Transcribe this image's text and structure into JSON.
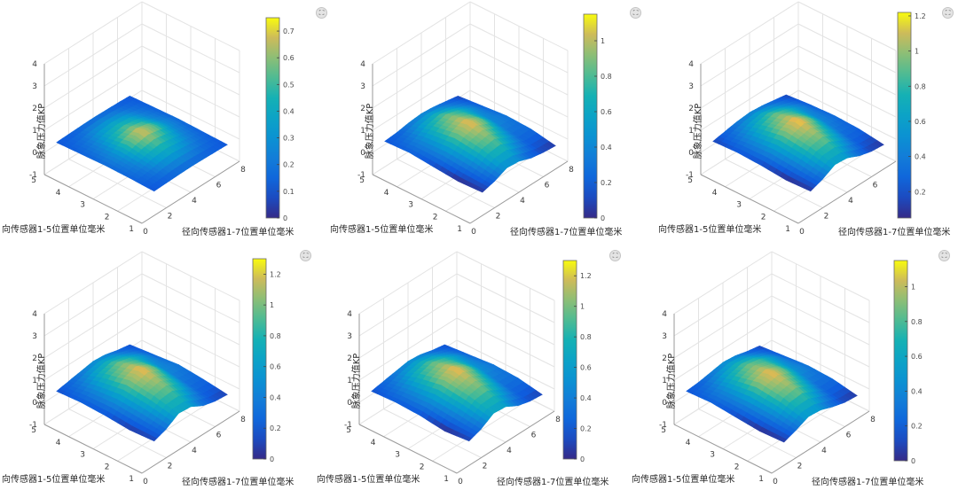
{
  "chart_data": [
    {
      "type": "surface",
      "zlabel": "脉象压力值KP",
      "xlabel": "径向传感器1-7位置单位毫米",
      "ylabel": "向传感器1-5位置单位毫米",
      "x_ticks": [
        "0",
        "2",
        "4",
        "6",
        "8"
      ],
      "y_ticks": [
        "1",
        "2",
        "3",
        "4",
        "5"
      ],
      "z_ticks": [
        "-1",
        "0",
        "1",
        "2",
        "3",
        "4"
      ],
      "zlim": [
        -1,
        4
      ],
      "colorbar": {
        "ticks": [
          "0",
          "0.1",
          "0.2",
          "0.3",
          "0.4",
          "0.5",
          "0.6",
          "0.7"
        ],
        "range": [
          0,
          0.75
        ]
      },
      "peak_value": 0.72,
      "surface_z": [
        [
          0.1,
          0.12,
          0.14,
          0.15,
          0.14,
          0.12,
          0.1
        ],
        [
          0.14,
          0.22,
          0.36,
          0.42,
          0.34,
          0.22,
          0.13
        ],
        [
          0.16,
          0.3,
          0.56,
          0.7,
          0.56,
          0.3,
          0.16
        ],
        [
          0.13,
          0.22,
          0.36,
          0.42,
          0.36,
          0.22,
          0.13
        ],
        [
          0.1,
          0.12,
          0.14,
          0.15,
          0.14,
          0.12,
          0.1
        ]
      ]
    },
    {
      "type": "surface",
      "zlabel": "脉象压力值KP",
      "xlabel": "径向传感器1-7位置单位毫米",
      "ylabel": "向传感器1-5位置单位毫米",
      "x_ticks": [
        "0",
        "2",
        "4",
        "6",
        "8"
      ],
      "y_ticks": [
        "1",
        "2",
        "3",
        "4",
        "5"
      ],
      "z_ticks": [
        "-1",
        "0",
        "1",
        "2",
        "3",
        "4"
      ],
      "zlim": [
        -1,
        4
      ],
      "colorbar": {
        "ticks": [
          "0",
          "0.2",
          "0.4",
          "0.6",
          "0.8",
          "1"
        ],
        "range": [
          0,
          1.15
        ]
      },
      "peak_value": 1.1,
      "surface_z": [
        [
          0.05,
          0.2,
          0.45,
          0.4,
          0.2,
          0.1,
          0.05
        ],
        [
          0.0,
          0.35,
          0.75,
          0.85,
          0.55,
          0.25,
          0.25
        ],
        [
          0.1,
          0.45,
          0.9,
          1.1,
          0.85,
          0.4,
          0.3
        ],
        [
          0.2,
          0.4,
          0.7,
          0.85,
          0.7,
          0.45,
          0.2
        ],
        [
          0.15,
          0.2,
          0.3,
          0.35,
          0.3,
          0.2,
          0.1
        ]
      ]
    },
    {
      "type": "surface",
      "zlabel": "脉象压力值KP",
      "xlabel": "径向传感器1-7位置单位毫米",
      "ylabel": "向传感器1-5位置单位毫米",
      "x_ticks": [
        "0",
        "2",
        "4",
        "6",
        "8"
      ],
      "y_ticks": [
        "1",
        "2",
        "3",
        "4",
        "5"
      ],
      "z_ticks": [
        "-1",
        "0",
        "1",
        "2",
        "3",
        "4"
      ],
      "zlim": [
        -1,
        4
      ],
      "colorbar": {
        "ticks": [
          "0.2",
          "0.4",
          "0.6",
          "0.8",
          "1",
          "1.2"
        ],
        "range": [
          0.05,
          1.22
        ]
      },
      "peak_value": 1.2,
      "surface_z": [
        [
          0.1,
          0.3,
          0.6,
          0.55,
          0.3,
          0.15,
          0.1
        ],
        [
          0.05,
          0.45,
          0.85,
          0.95,
          0.65,
          0.3,
          0.25
        ],
        [
          0.15,
          0.55,
          1.0,
          1.2,
          0.9,
          0.45,
          0.3
        ],
        [
          0.2,
          0.45,
          0.75,
          0.9,
          0.75,
          0.5,
          0.25
        ],
        [
          0.15,
          0.25,
          0.35,
          0.4,
          0.35,
          0.25,
          0.15
        ]
      ]
    },
    {
      "type": "surface",
      "zlabel": "脉象压力值KP",
      "xlabel": "径向传感器1-7位置单位毫米",
      "ylabel": "向传感器1-5位置单位毫米",
      "x_ticks": [
        "0",
        "2",
        "4",
        "6",
        "8"
      ],
      "y_ticks": [
        "1",
        "2",
        "3",
        "4",
        "5"
      ],
      "z_ticks": [
        "-1",
        "0",
        "1",
        "2",
        "3",
        "4"
      ],
      "zlim": [
        -1,
        4
      ],
      "colorbar": {
        "ticks": [
          "0",
          "0.2",
          "0.4",
          "0.6",
          "0.8",
          "1",
          "1.2"
        ],
        "range": [
          0,
          1.3
        ]
      },
      "peak_value": 1.25,
      "surface_z": [
        [
          0.1,
          0.3,
          0.65,
          0.6,
          0.3,
          0.15,
          0.1
        ],
        [
          0.05,
          0.45,
          0.9,
          1.0,
          0.7,
          0.3,
          0.25
        ],
        [
          0.15,
          0.55,
          1.05,
          1.25,
          0.95,
          0.45,
          0.35
        ],
        [
          0.2,
          0.45,
          0.8,
          0.95,
          0.8,
          0.55,
          0.25
        ],
        [
          0.15,
          0.25,
          0.35,
          0.45,
          0.4,
          0.25,
          0.15
        ]
      ]
    },
    {
      "type": "surface",
      "zlabel": "脉象压力值KP",
      "xlabel": "径向传感器1-7位置单位毫米",
      "ylabel": "向传感器1-5位置单位毫米",
      "x_ticks": [
        "0",
        "2",
        "4",
        "6",
        "8"
      ],
      "y_ticks": [
        "1",
        "2",
        "3",
        "4",
        "5"
      ],
      "z_ticks": [
        "-1",
        "0",
        "1",
        "2",
        "3",
        "4"
      ],
      "zlim": [
        -1,
        4
      ],
      "colorbar": {
        "ticks": [
          "0",
          "0.2",
          "0.4",
          "0.6",
          "0.8",
          "1",
          "1.2"
        ],
        "range": [
          0,
          1.3
        ]
      },
      "peak_value": 1.25,
      "surface_z": [
        [
          0.1,
          0.3,
          0.65,
          0.6,
          0.3,
          0.15,
          0.1
        ],
        [
          0.0,
          0.45,
          0.9,
          1.0,
          0.7,
          0.3,
          0.3
        ],
        [
          0.15,
          0.55,
          1.05,
          1.25,
          0.95,
          0.5,
          0.35
        ],
        [
          0.2,
          0.45,
          0.8,
          0.95,
          0.8,
          0.55,
          0.25
        ],
        [
          0.15,
          0.25,
          0.35,
          0.45,
          0.4,
          0.25,
          0.15
        ]
      ]
    },
    {
      "type": "surface",
      "zlabel": "脉象压力值KP",
      "xlabel": "径向传感器1-7位置单位毫米",
      "ylabel": "向传感器1-5位置单位毫米",
      "x_ticks": [
        "0",
        "2",
        "4",
        "6",
        "8"
      ],
      "y_ticks": [
        "1",
        "2",
        "3",
        "4",
        "5"
      ],
      "z_ticks": [
        "-1",
        "0",
        "1",
        "2",
        "3",
        "4"
      ],
      "zlim": [
        -1,
        4
      ],
      "colorbar": {
        "ticks": [
          "0",
          "0.2",
          "0.4",
          "0.6",
          "0.8",
          "1"
        ],
        "range": [
          0,
          1.15
        ]
      },
      "peak_value": 1.1,
      "surface_z": [
        [
          0.05,
          0.25,
          0.5,
          0.45,
          0.25,
          0.1,
          0.05
        ],
        [
          0.0,
          0.4,
          0.8,
          0.9,
          0.6,
          0.25,
          0.25
        ],
        [
          0.1,
          0.45,
          0.95,
          1.1,
          0.85,
          0.45,
          0.3
        ],
        [
          0.2,
          0.4,
          0.7,
          0.85,
          0.75,
          0.5,
          0.2
        ],
        [
          0.15,
          0.2,
          0.3,
          0.4,
          0.35,
          0.2,
          0.1
        ]
      ]
    }
  ]
}
